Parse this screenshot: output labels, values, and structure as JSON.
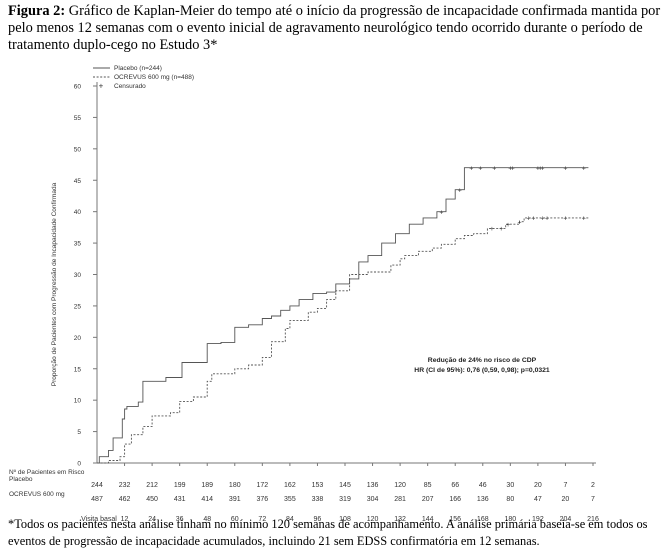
{
  "figure": {
    "label": "Figura 2:",
    "title": "Gráfico de Kaplan-Meier do tempo até o início da progressão de incapacidade confirmada mantida por pelo menos 12 semanas com o evento inicial de agravamento neurológico tendo ocorrido durante o período de tratamento duplo-cego no Estudo 3*"
  },
  "footnote": "*Todos os pacientes nesta análise tinham no mínimo 120 semanas de acompanhamento. A análise primária baseia-se em todos os eventos de progressão de incapacidade acumulados, incluindo 21 sem EDSS confirmatória em 12 semanas.",
  "chart_data": {
    "type": "line",
    "ylabel": "Proporção de Pacientes com Progressão de Incapacidade Confirmada",
    "xlabel": "Visita basal",
    "ylim": [
      0,
      60
    ],
    "xlim": [
      0,
      216
    ],
    "yticks": [
      0,
      5,
      10,
      15,
      20,
      25,
      30,
      35,
      40,
      45,
      50,
      55,
      60
    ],
    "xticks": [
      12,
      24,
      36,
      48,
      60,
      72,
      84,
      96,
      108,
      120,
      132,
      144,
      156,
      168,
      180,
      192,
      204,
      216
    ],
    "grid": false,
    "legend": {
      "placement": "top-left",
      "entries": [
        "Placebo (n=244)",
        "OCREVUS 600 mg (n=488)",
        "Censurado"
      ],
      "censored_symbol": "+"
    },
    "annotation": {
      "line1": "Redução de 24% no risco de CDP",
      "line2": "HR (CI de 95%): 0,76 (0,59, 0,98); p=0,0321"
    },
    "series": [
      {
        "name": "Placebo (n=244)",
        "style": "solid",
        "color": "#555555",
        "x": [
          0,
          1,
          5,
          7,
          11,
          12,
          13,
          18,
          20,
          30,
          37,
          48,
          54,
          60,
          66,
          72,
          76,
          80,
          84,
          88,
          94,
          100,
          104,
          110,
          114,
          118,
          124,
          130,
          136,
          142,
          148,
          152,
          156,
          160,
          168,
          180,
          192,
          204,
          214
        ],
        "y": [
          0,
          1,
          2,
          4,
          7,
          8.6,
          9,
          9.7,
          13,
          13.6,
          16,
          19,
          19.2,
          21.6,
          22,
          23,
          23.4,
          24.3,
          25,
          26,
          27,
          27.2,
          28.5,
          29.3,
          32,
          33,
          35,
          36.5,
          38,
          39,
          40,
          42,
          43.5,
          47,
          47,
          47,
          47,
          47,
          47
        ],
        "censored_x": [
          150,
          158,
          163,
          167,
          173,
          180,
          181,
          192,
          193,
          194,
          204,
          212
        ]
      },
      {
        "name": "OCREVUS 600 mg (n=488)",
        "style": "dashed",
        "color": "#555555",
        "x": [
          0,
          5,
          10,
          12,
          15,
          20,
          24,
          32,
          36,
          42,
          48,
          50,
          60,
          66,
          72,
          76,
          82,
          84,
          92,
          96,
          100,
          104,
          110,
          118,
          128,
          132,
          134,
          140,
          146,
          150,
          156,
          160,
          164,
          170,
          178,
          184,
          186,
          198,
          214
        ],
        "y": [
          0,
          0.4,
          1,
          3,
          4.5,
          5.8,
          7.5,
          8,
          9.8,
          10.5,
          13,
          14.2,
          15,
          15.6,
          16.8,
          19.3,
          21.4,
          22.7,
          24,
          24.6,
          26,
          27.4,
          30,
          30.4,
          31.5,
          32.5,
          33,
          33.7,
          34.2,
          34.8,
          35.7,
          36.2,
          36.5,
          37.3,
          38,
          38.4,
          39,
          39,
          39
        ],
        "censored_x": [
          172,
          176,
          179,
          184,
          188,
          190,
          194,
          196,
          204,
          212
        ]
      }
    ],
    "risk_table": {
      "title": "Nº de Pacientes em Risco",
      "rows": [
        {
          "label": "Placebo",
          "values": [
            "244",
            "232",
            "212",
            "199",
            "189",
            "180",
            "172",
            "162",
            "153",
            "145",
            "136",
            "120",
            "85",
            "66",
            "46",
            "30",
            "20",
            "7",
            "2"
          ]
        },
        {
          "label": "OCREVUS 600 mg",
          "values": [
            "487",
            "462",
            "450",
            "431",
            "414",
            "391",
            "376",
            "355",
            "338",
            "319",
            "304",
            "281",
            "207",
            "166",
            "136",
            "80",
            "47",
            "20",
            "7"
          ]
        }
      ]
    }
  }
}
